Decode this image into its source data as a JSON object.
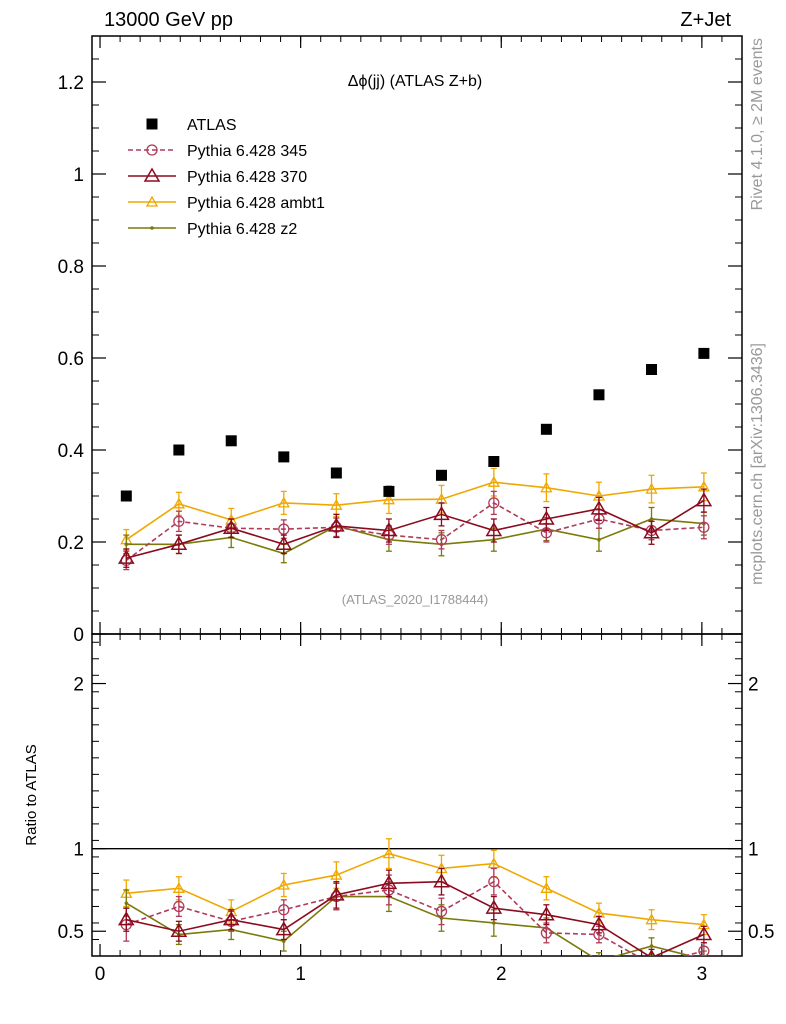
{
  "header": {
    "energy_label": "13000 GeV pp",
    "process_label": "Z+Jet"
  },
  "side_text": {
    "rivet": "Rivet 4.1.0, ≥ 2M events",
    "mcplots": "mcplots.cern.ch [arXiv:1306.3436]"
  },
  "colors": {
    "atlas": "#000000",
    "p345": "#b03a5a",
    "p370": "#8b0a1e",
    "ambt1": "#f0a800",
    "z2": "#7a7a0a"
  },
  "chart_data": [
    {
      "type": "scatter",
      "title": "Δϕ(jj) (ATLAS Z+b)",
      "analysis_label": "(ATLAS_2020_I1788444)",
      "xlabel": "",
      "ylabel": "",
      "xlim": [
        -0.04,
        3.2
      ],
      "ylim": [
        0,
        1.3
      ],
      "x_ticks": [
        0,
        1,
        2,
        3
      ],
      "y_ticks": [
        0,
        0.2,
        0.4,
        0.6,
        0.8,
        1,
        1.2
      ],
      "y_tick_labels": [
        "0",
        "0.2",
        "0.4",
        "0.6",
        "0.8",
        "1",
        "1.2"
      ],
      "x": [
        0.131,
        0.393,
        0.654,
        0.916,
        1.178,
        1.44,
        1.702,
        1.963,
        2.225,
        2.487,
        2.749,
        3.01
      ],
      "series": [
        {
          "name": "ATLAS",
          "key": "atlas",
          "marker": "square",
          "line": "none",
          "values": [
            0.3,
            0.4,
            0.42,
            0.385,
            0.35,
            0.31,
            0.345,
            0.375,
            0.445,
            0.52,
            0.575,
            0.61
          ],
          "errors": [
            0,
            0,
            0,
            0,
            0,
            0,
            0,
            0,
            0,
            0,
            0,
            0
          ]
        },
        {
          "name": "Pythia 6.428 345",
          "key": "p345",
          "marker": "circle",
          "line": "dashed",
          "values": [
            0.16,
            0.245,
            0.23,
            0.228,
            0.232,
            0.215,
            0.205,
            0.285,
            0.22,
            0.25,
            0.225,
            0.232
          ],
          "errors": [
            0.02,
            0.022,
            0.02,
            0.02,
            0.02,
            0.02,
            0.02,
            0.025,
            0.02,
            0.02,
            0.02,
            0.025
          ]
        },
        {
          "name": "Pythia 6.428 370",
          "key": "p370",
          "marker": "triangle",
          "line": "solid",
          "values": [
            0.165,
            0.195,
            0.23,
            0.195,
            0.235,
            0.225,
            0.26,
            0.225,
            0.25,
            0.272,
            0.22,
            0.29
          ],
          "errors": [
            0.02,
            0.02,
            0.02,
            0.02,
            0.025,
            0.025,
            0.025,
            0.025,
            0.025,
            0.025,
            0.025,
            0.025
          ]
        },
        {
          "name": "Pythia 6.428 ambt1",
          "key": "ambt1",
          "marker": "triangle-small",
          "line": "solid",
          "values": [
            0.205,
            0.283,
            0.248,
            0.285,
            0.28,
            0.292,
            0.293,
            0.33,
            0.318,
            0.3,
            0.315,
            0.32
          ],
          "errors": [
            0.022,
            0.025,
            0.025,
            0.025,
            0.025,
            0.03,
            0.03,
            0.03,
            0.03,
            0.03,
            0.03,
            0.03
          ]
        },
        {
          "name": "Pythia 6.428 z2",
          "key": "z2",
          "marker": "dot",
          "line": "solid",
          "values": [
            0.195,
            0.195,
            0.21,
            0.175,
            0.235,
            0.205,
            0.195,
            0.205,
            0.228,
            0.205,
            0.25,
            0.24
          ],
          "errors": [
            0.02,
            0.02,
            0.022,
            0.02,
            0.025,
            0.025,
            0.025,
            0.025,
            0.025,
            0.025,
            0.025,
            0.025
          ]
        }
      ]
    },
    {
      "type": "scatter",
      "title": "",
      "xlabel": "",
      "ylabel": "Ratio to ATLAS",
      "xlim": [
        -0.04,
        3.2
      ],
      "ylim": [
        0.35,
        2.3
      ],
      "x_ticks": [
        0,
        1,
        2,
        3
      ],
      "x_tick_labels": [
        "0",
        "1",
        "2",
        "3"
      ],
      "y_ticks": [
        0.5,
        1,
        2
      ],
      "y_tick_labels": [
        "0.5",
        "1",
        "2"
      ],
      "reference_line": 1,
      "x": [
        0.131,
        0.393,
        0.654,
        0.916,
        1.178,
        1.44,
        1.702,
        1.963,
        2.225,
        2.487,
        2.749,
        3.01
      ],
      "series": [
        {
          "name": "Pythia 6.428 345",
          "key": "p345",
          "marker": "circle",
          "line": "dashed",
          "values": [
            0.54,
            0.65,
            0.56,
            0.63,
            0.71,
            0.75,
            0.62,
            0.8,
            0.49,
            0.48,
            0.3,
            0.38
          ],
          "errors": [
            0.1,
            0.06,
            0.06,
            0.06,
            0.08,
            0.09,
            0.08,
            0.08,
            0.06,
            0.05,
            0.05,
            0.05
          ]
        },
        {
          "name": "Pythia 6.428 370",
          "key": "p370",
          "marker": "triangle",
          "line": "solid",
          "values": [
            0.57,
            0.5,
            0.57,
            0.51,
            0.72,
            0.79,
            0.8,
            0.64,
            0.6,
            0.54,
            0.34,
            0.48
          ],
          "errors": [
            0.07,
            0.06,
            0.06,
            0.06,
            0.08,
            0.08,
            0.08,
            0.07,
            0.06,
            0.05,
            0.05,
            0.05
          ]
        },
        {
          "name": "Pythia 6.428 ambt1",
          "key": "ambt1",
          "marker": "triangle-small",
          "line": "solid",
          "values": [
            0.73,
            0.76,
            0.62,
            0.78,
            0.84,
            0.97,
            0.88,
            0.91,
            0.76,
            0.61,
            0.57,
            0.54
          ],
          "errors": [
            0.08,
            0.07,
            0.07,
            0.07,
            0.08,
            0.09,
            0.08,
            0.08,
            0.07,
            0.06,
            0.06,
            0.06
          ]
        },
        {
          "name": "Pythia 6.428 z2",
          "key": "z2",
          "marker": "dot",
          "line": "solid",
          "values": [
            0.67,
            0.48,
            0.51,
            0.44,
            0.71,
            0.71,
            0.58,
            0.55,
            0.52,
            0.32,
            0.41,
            0.33
          ],
          "errors": [
            0.08,
            0.06,
            0.06,
            0.06,
            0.08,
            0.09,
            0.08,
            0.08,
            0.06,
            0.05,
            0.05,
            0.05
          ]
        }
      ]
    }
  ]
}
